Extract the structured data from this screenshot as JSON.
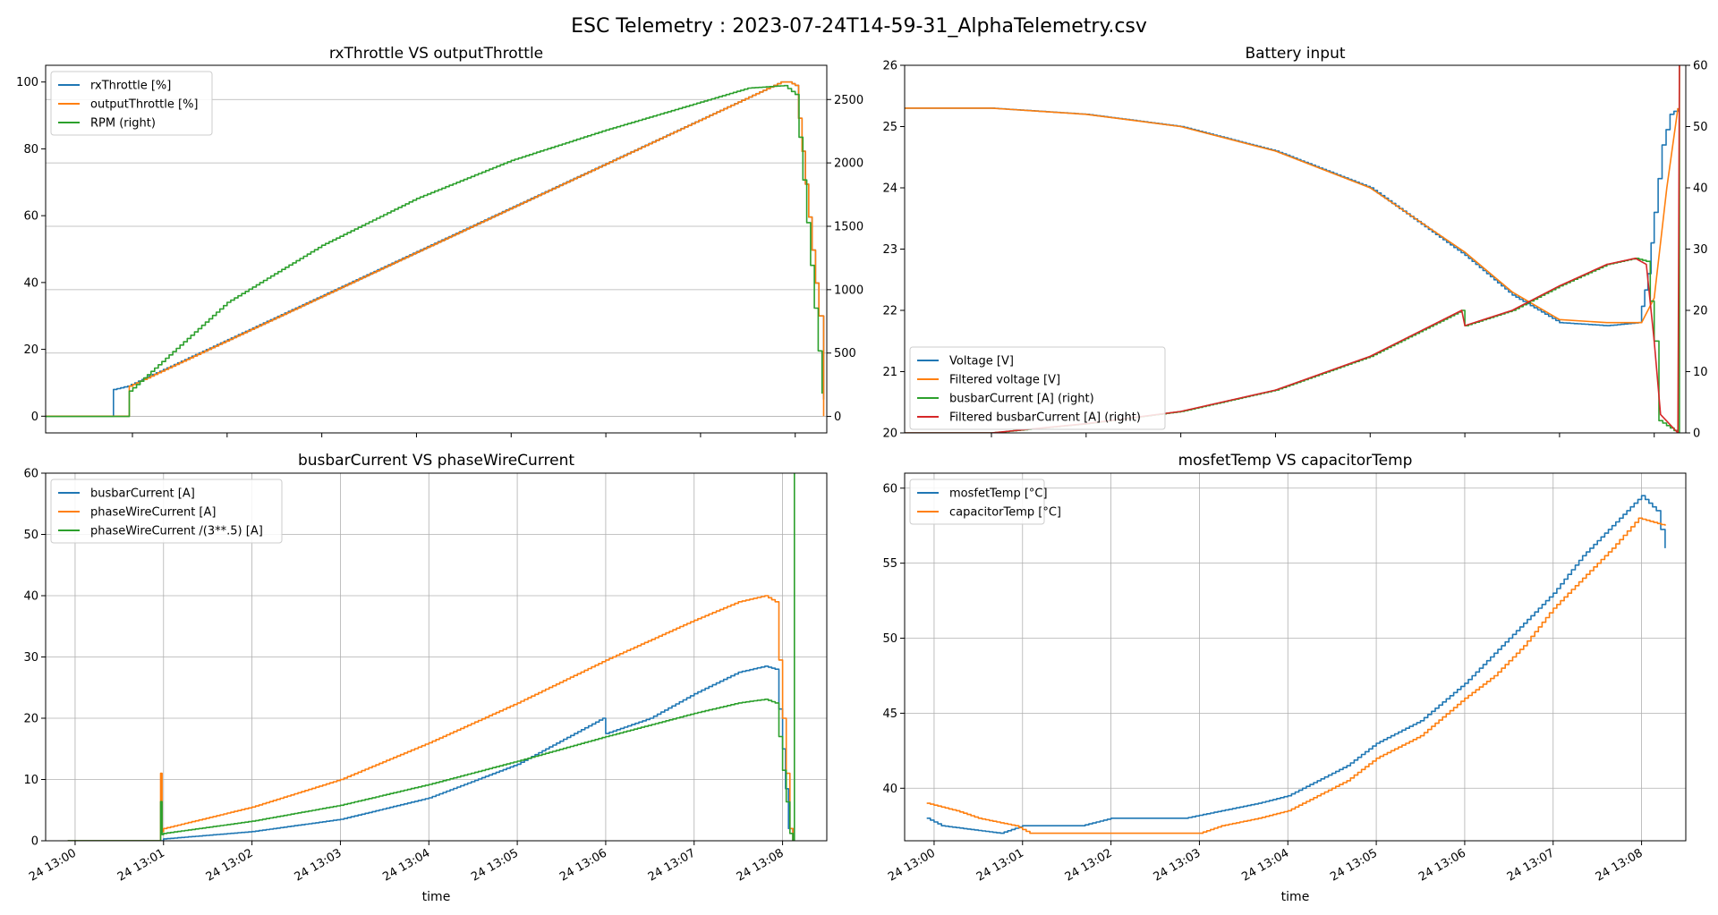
{
  "figure": {
    "suptitle": "ESC Telemetry : 2023-07-24T14-59-31_AlphaTelemetry.csv",
    "time_ticks": [
      "24 13:00",
      "24 13:01",
      "24 13:02",
      "24 13:03",
      "24 13:04",
      "24 13:05",
      "24 13:06",
      "24 13:07",
      "24 13:08"
    ],
    "xlabel": "time",
    "colors": {
      "blue": "#1f77b4",
      "orange": "#ff7f0e",
      "green": "#2ca02c",
      "red": "#d62728"
    }
  },
  "chart_data": [
    {
      "id": "throttle",
      "type": "line",
      "title": "rxThrottle VS outputThrottle",
      "xlim": [
        "13:00:05",
        "13:08:20"
      ],
      "ylim": [
        -5,
        105
      ],
      "y2lim": [
        -130,
        2770
      ],
      "yticks": [
        0,
        20,
        40,
        60,
        80,
        100
      ],
      "y2ticks": [
        0,
        500,
        1000,
        1500,
        2000,
        2500
      ],
      "legend": "upper left",
      "grid": "y2",
      "series": [
        {
          "name": "rxThrottle [%]",
          "color": "#1f77b4",
          "axis": "left",
          "step": true,
          "x": [
            "13:00:05",
            "13:00:48",
            "13:00:48",
            "13:00:57",
            "13:00:57",
            "13:07:51",
            "13:07:56",
            "13:08:00",
            "13:08:15",
            "13:08:18"
          ],
          "y": [
            0,
            0,
            8,
            9,
            9,
            100,
            100,
            99,
            30,
            5
          ]
        },
        {
          "name": "outputThrottle [%]",
          "color": "#ff7f0e",
          "axis": "left",
          "step": true,
          "x": [
            "13:00:05",
            "13:00:57",
            "13:00:58",
            "13:07:51",
            "13:07:56",
            "13:08:00",
            "13:08:15",
            "13:08:18"
          ],
          "y": [
            0,
            0,
            9,
            100,
            100,
            99,
            30,
            0
          ]
        },
        {
          "name": "RPM (right)",
          "color": "#2ca02c",
          "axis": "right",
          "step": true,
          "x": [
            "13:00:05",
            "13:00:57",
            "13:00:58",
            "13:02:00",
            "13:03:00",
            "13:04:00",
            "13:05:00",
            "13:06:00",
            "13:07:00",
            "13:07:30",
            "13:07:53",
            "13:08:00",
            "13:08:17"
          ],
          "y": [
            0,
            0,
            200,
            900,
            1350,
            1720,
            2020,
            2260,
            2480,
            2590,
            2610,
            2540,
            180
          ]
        }
      ]
    },
    {
      "id": "battery",
      "type": "line",
      "title": "Battery input",
      "xlim": [
        "13:00:05",
        "13:08:20"
      ],
      "ylim": [
        20,
        26
      ],
      "y2lim": [
        0,
        60
      ],
      "yticks": [
        20,
        21,
        22,
        23,
        24,
        25,
        26
      ],
      "y2ticks": [
        0,
        10,
        20,
        30,
        40,
        50,
        60
      ],
      "legend": "lower left",
      "grid": "none",
      "series": [
        {
          "name": "Voltage [V]",
          "color": "#1f77b4",
          "axis": "left",
          "step": true,
          "x": [
            "13:00:05",
            "13:01:00",
            "13:02:00",
            "13:03:00",
            "13:04:00",
            "13:05:00",
            "13:06:00",
            "13:06:30",
            "13:07:00",
            "13:07:30",
            "13:07:50",
            "13:07:56",
            "13:08:00",
            "13:08:05",
            "13:08:10",
            "13:08:15"
          ],
          "y": [
            25.3,
            25.3,
            25.2,
            25.0,
            24.6,
            24.0,
            22.9,
            22.25,
            21.8,
            21.75,
            21.8,
            22.6,
            23.6,
            24.7,
            25.2,
            25.3
          ]
        },
        {
          "name": "Filtered voltage [V]",
          "color": "#ff7f0e",
          "axis": "left",
          "step": false,
          "x": [
            "13:00:05",
            "13:01:00",
            "13:02:00",
            "13:03:00",
            "13:04:00",
            "13:05:00",
            "13:06:00",
            "13:06:30",
            "13:07:00",
            "13:07:30",
            "13:07:52",
            "13:08:00",
            "13:08:08",
            "13:08:15"
          ],
          "y": [
            25.3,
            25.3,
            25.2,
            25.0,
            24.6,
            24.0,
            22.95,
            22.3,
            21.85,
            21.8,
            21.8,
            22.2,
            24.0,
            25.3
          ]
        },
        {
          "name": "busbarCurrent [A] (right)",
          "color": "#2ca02c",
          "axis": "right",
          "step": true,
          "x": [
            "13:00:05",
            "13:01:00",
            "13:02:00",
            "13:03:00",
            "13:04:00",
            "13:05:00",
            "13:05:58",
            "13:06:00",
            "13:06:30",
            "13:07:00",
            "13:07:30",
            "13:07:48",
            "13:07:55",
            "13:08:00",
            "13:08:03",
            "13:08:15",
            "13:08:16"
          ],
          "y": [
            0,
            0,
            1.5,
            3.5,
            7,
            12.5,
            20,
            17.5,
            20,
            24,
            27.5,
            28.5,
            28,
            15,
            2,
            0,
            60
          ]
        },
        {
          "name": "Filtered busbarCurrent [A] (right)",
          "color": "#d62728",
          "axis": "right",
          "step": false,
          "x": [
            "13:00:05",
            "13:01:00",
            "13:02:00",
            "13:03:00",
            "13:04:00",
            "13:05:00",
            "13:05:58",
            "13:06:00",
            "13:06:30",
            "13:07:00",
            "13:07:30",
            "13:07:48",
            "13:07:55",
            "13:08:00",
            "13:08:04",
            "13:08:15",
            "13:08:16"
          ],
          "y": [
            0,
            0,
            1.5,
            3.5,
            7,
            12.5,
            20,
            17.5,
            20,
            24,
            27.5,
            28.5,
            27.5,
            15,
            3,
            0,
            60
          ]
        }
      ]
    },
    {
      "id": "current",
      "type": "line",
      "title": "busbarCurrent VS phaseWireCurrent",
      "xlim": [
        "12:59:40",
        "13:08:30"
      ],
      "ylim": [
        0,
        60
      ],
      "yticks": [
        0,
        10,
        20,
        30,
        40,
        50,
        60
      ],
      "legend": "upper left",
      "grid": "both",
      "series": [
        {
          "name": "busbarCurrent [A]",
          "color": "#1f77b4",
          "step": true,
          "x": [
            "12:59:55",
            "13:00:57",
            "13:01:00",
            "13:02:00",
            "13:03:00",
            "13:04:00",
            "13:05:00",
            "13:05:58",
            "13:06:00",
            "13:06:30",
            "13:07:00",
            "13:07:30",
            "13:07:48",
            "13:07:55",
            "13:08:00",
            "13:08:04",
            "13:08:07"
          ],
          "y": [
            0,
            0,
            0.3,
            1.5,
            3.5,
            7,
            12.5,
            20,
            17.5,
            20,
            24,
            27.5,
            28.5,
            28,
            15,
            2,
            0
          ]
        },
        {
          "name": "phaseWireCurrent [A]",
          "color": "#ff7f0e",
          "step": true,
          "x": [
            "12:59:55",
            "13:00:57",
            "13:00:58",
            "13:00:59",
            "13:01:00",
            "13:02:00",
            "13:03:00",
            "13:04:00",
            "13:05:00",
            "13:06:00",
            "13:07:00",
            "13:07:30",
            "13:07:48",
            "13:07:55",
            "13:08:00",
            "13:08:05",
            "13:08:07"
          ],
          "y": [
            0,
            0,
            11,
            1.5,
            2,
            5.5,
            10,
            16,
            22.5,
            29.5,
            36,
            39,
            40,
            39,
            20,
            2,
            0
          ]
        },
        {
          "name": "phaseWireCurrent /(3**.5) [A]",
          "color": "#2ca02c",
          "step": true,
          "x": [
            "12:59:55",
            "13:00:57",
            "13:00:58",
            "13:00:59",
            "13:01:00",
            "13:02:00",
            "13:03:00",
            "13:04:00",
            "13:05:00",
            "13:06:00",
            "13:07:00",
            "13:07:30",
            "13:07:48",
            "13:07:55",
            "13:08:00",
            "13:08:05",
            "13:08:07",
            "13:08:08"
          ],
          "y": [
            0,
            0,
            6.4,
            1.0,
            1.2,
            3.2,
            5.8,
            9.2,
            13,
            17,
            20.8,
            22.5,
            23.1,
            22.5,
            11.5,
            1.2,
            0,
            60
          ]
        }
      ]
    },
    {
      "id": "temps",
      "type": "line",
      "title": "mosfetTemp VS capacitorTemp",
      "xlim": [
        "12:59:40",
        "13:08:30"
      ],
      "ylim": [
        36.5,
        61
      ],
      "yticks": [
        40,
        45,
        50,
        55,
        60
      ],
      "legend": "upper left",
      "grid": "both",
      "series": [
        {
          "name": "mosfetTemp [°C]",
          "color": "#1f77b4",
          "step": true,
          "x": [
            "12:59:55",
            "13:00:05",
            "13:00:45",
            "13:01:00",
            "13:01:40",
            "13:02:00",
            "13:02:50",
            "13:03:15",
            "13:03:40",
            "13:04:00",
            "13:04:20",
            "13:04:40",
            "13:05:00",
            "13:05:30",
            "13:06:00",
            "13:06:20",
            "13:06:40",
            "13:07:00",
            "13:07:20",
            "13:07:40",
            "13:08:00",
            "13:08:10",
            "13:08:16"
          ],
          "y": [
            38,
            37.5,
            37,
            37.5,
            37.5,
            38,
            38,
            38.5,
            39,
            39.5,
            40.5,
            41.5,
            43,
            44.5,
            47,
            49,
            51,
            53,
            55.5,
            57.5,
            59.5,
            58.5,
            56
          ]
        },
        {
          "name": "capacitorTemp [°C]",
          "color": "#ff7f0e",
          "step": true,
          "x": [
            "12:59:55",
            "13:00:15",
            "13:00:30",
            "13:00:55",
            "13:01:05",
            "13:02:00",
            "13:03:00",
            "13:03:15",
            "13:03:40",
            "13:04:00",
            "13:04:20",
            "13:04:40",
            "13:05:00",
            "13:05:30",
            "13:06:00",
            "13:06:20",
            "13:06:40",
            "13:07:00",
            "13:07:20",
            "13:07:40",
            "13:07:58",
            "13:08:16"
          ],
          "y": [
            39,
            38.5,
            38,
            37.5,
            37,
            37,
            37,
            37.5,
            38,
            38.5,
            39.5,
            40.5,
            42,
            43.5,
            46,
            47.5,
            49.5,
            52,
            54,
            56,
            58,
            57.5
          ]
        }
      ]
    }
  ]
}
